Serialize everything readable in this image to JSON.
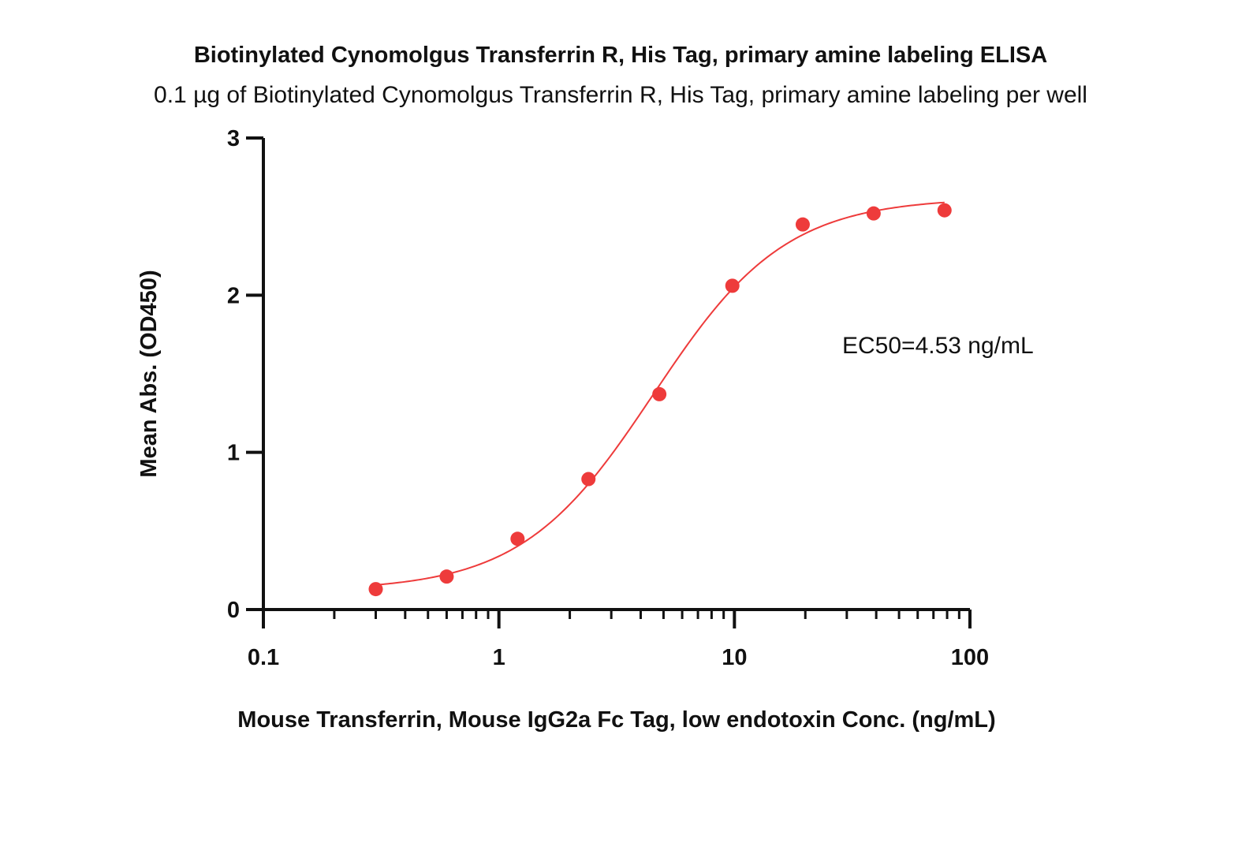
{
  "chart_data": {
    "type": "scatter",
    "title": "Biotinylated Cynomolgus Transferrin R, His Tag, primary amine labeling ELISA",
    "subtitle": "0.1 µg of Biotinylated Cynomolgus Transferrin R, His Tag, primary amine labeling per well",
    "xlabel": "Mouse Transferrin, Mouse IgG2a Fc Tag, low endotoxin Conc. (ng/mL)",
    "ylabel": "Mean Abs. (OD450)",
    "x_scale": "log10",
    "xlim": [
      0.1,
      100
    ],
    "ylim": [
      0,
      3
    ],
    "x_ticks": [
      0.1,
      1,
      10,
      100
    ],
    "x_tick_labels": [
      "0.1",
      "1",
      "10",
      "100"
    ],
    "y_ticks": [
      0,
      1,
      2,
      3
    ],
    "y_tick_labels": [
      "0",
      "1",
      "2",
      "3"
    ],
    "grid": false,
    "series": [
      {
        "color": "#ee3b3b",
        "x": [
          0.3,
          0.6,
          1.2,
          2.4,
          4.8,
          9.8,
          19.5,
          39,
          78
        ],
        "y": [
          0.13,
          0.21,
          0.45,
          0.83,
          1.37,
          2.06,
          2.45,
          2.52,
          2.54
        ],
        "fit": {
          "model": "4PL",
          "bottom": 0.12,
          "top": 2.62,
          "ec50": 4.53,
          "hill": 1.55
        }
      }
    ],
    "annotations": [
      {
        "text": "EC50=4.53 ng/mL"
      }
    ]
  }
}
